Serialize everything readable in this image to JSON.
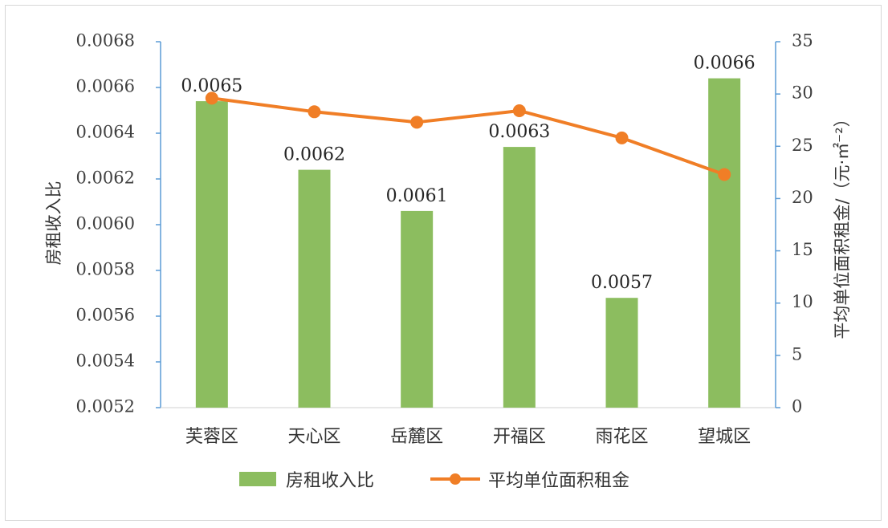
{
  "chart_data": {
    "type": "bar+line",
    "categories": [
      "芙蓉区",
      "天心区",
      "岳麓区",
      "开福区",
      "雨花区",
      "望城区"
    ],
    "series": [
      {
        "name": "房租收入比",
        "type": "bar",
        "axis": "left",
        "color": "#8cbd5f",
        "values": [
          0.00654,
          0.00624,
          0.00606,
          0.00634,
          0.00568,
          0.00664
        ],
        "data_labels": [
          "0.0065",
          "0.0062",
          "0.0061",
          "0.0063",
          "0.0057",
          "0.0066"
        ]
      },
      {
        "name": "平均单位面积租金",
        "type": "line",
        "axis": "right",
        "color": "#f07e26",
        "values": [
          29.6,
          28.3,
          27.3,
          28.4,
          25.8,
          22.3
        ]
      }
    ],
    "y_left": {
      "label": "房租收入比",
      "ylim": [
        0.0052,
        0.0068
      ],
      "ticks": [
        "0.0052",
        "0.0054",
        "0.0056",
        "0.0058",
        "0.0060",
        "0.0062",
        "0.0064",
        "0.0066",
        "0.0068"
      ]
    },
    "y_right": {
      "label": "平均单位面积租金/（元·㎡⁻²）",
      "ylim": [
        0,
        35
      ],
      "ticks": [
        "0",
        "5",
        "10",
        "15",
        "20",
        "25",
        "30",
        "35"
      ]
    },
    "grid": false,
    "legend": "bottom"
  }
}
